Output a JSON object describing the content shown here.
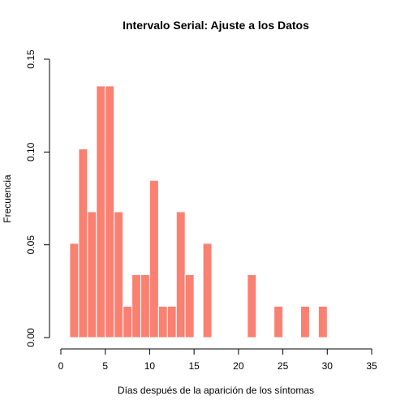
{
  "chart_data": {
    "type": "bar",
    "title": "Intervalo Serial: Ajuste a los Datos",
    "xlabel": "Días después de la aparición de los síntomas",
    "ylabel": "Frecuencia",
    "xlim": [
      0,
      35
    ],
    "ylim": [
      0,
      0.15
    ],
    "xticks": [
      0,
      5,
      10,
      15,
      20,
      25,
      30,
      35
    ],
    "xtick_labels": [
      "0",
      "5",
      "10",
      "15",
      "20",
      "25",
      "30",
      "35"
    ],
    "yticks": [
      0,
      0.05,
      0.1,
      0.15
    ],
    "ytick_labels": [
      "0.00",
      "0.05",
      "0.10",
      "0.15"
    ],
    "bar_color": "#FA8072",
    "bar_edge_color": "#ffffff",
    "grid": false,
    "bins": [
      {
        "x0": 1,
        "x1": 2,
        "value": 0.0508
      },
      {
        "x0": 2,
        "x1": 3,
        "value": 0.1017
      },
      {
        "x0": 3,
        "x1": 4,
        "value": 0.0678
      },
      {
        "x0": 4,
        "x1": 5,
        "value": 0.1356
      },
      {
        "x0": 5,
        "x1": 6,
        "value": 0.1356
      },
      {
        "x0": 6,
        "x1": 7,
        "value": 0.0678
      },
      {
        "x0": 7,
        "x1": 8,
        "value": 0.0169
      },
      {
        "x0": 8,
        "x1": 9,
        "value": 0.0339
      },
      {
        "x0": 9,
        "x1": 10,
        "value": 0.0339
      },
      {
        "x0": 10,
        "x1": 11,
        "value": 0.0847
      },
      {
        "x0": 11,
        "x1": 12,
        "value": 0.0169
      },
      {
        "x0": 12,
        "x1": 13,
        "value": 0.0169
      },
      {
        "x0": 13,
        "x1": 14,
        "value": 0.0678
      },
      {
        "x0": 14,
        "x1": 15,
        "value": 0.0339
      },
      {
        "x0": 16,
        "x1": 17,
        "value": 0.0508
      },
      {
        "x0": 21,
        "x1": 22,
        "value": 0.0339
      },
      {
        "x0": 24,
        "x1": 25,
        "value": 0.0169
      },
      {
        "x0": 27,
        "x1": 28,
        "value": 0.0169
      },
      {
        "x0": 29,
        "x1": 30,
        "value": 0.0169
      }
    ]
  }
}
